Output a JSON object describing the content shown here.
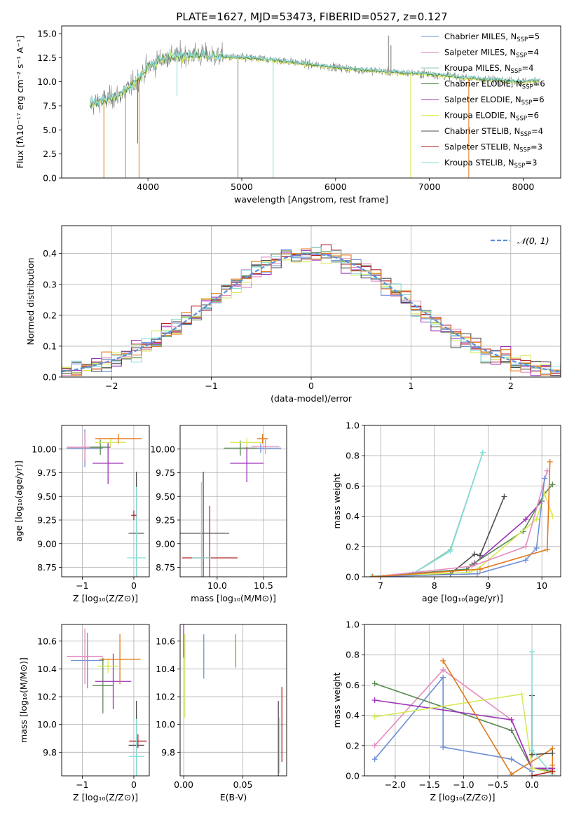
{
  "figure": {
    "title": "PLATE=1627, MJD=53473, FIBERID=0527, z=0.127"
  },
  "colors": {
    "chabrier_miles": "#6f8fd6",
    "salpeter_miles": "#e58cc0",
    "kroupa_miles": "#86c9a6",
    "chabrier_elodie": "#5a8a52",
    "salpeter_elodie": "#9b33b8",
    "kroupa_elodie": "#d7ea57",
    "chabrier_stelib": "#4d4d4d",
    "salpeter_stelib": "#b82424",
    "kroupa_stelib": "#86dcd9",
    "orange_extra": "#e07a1c",
    "normal_fit": "#5b8fd6"
  },
  "chart_data": [
    {
      "id": "spectrum",
      "type": "line",
      "title": "PLATE=1627, MJD=53473, FIBERID=0527, z=0.127",
      "xlabel": "wavelength [Angstrom, rest frame]",
      "ylabel": "Flux [f$_\\lambda$10$^{-17}$ erg cm$^{-2}$ s$^{-1}$ A$^{-1}$]",
      "ylabel_display": "Flux [fλ10⁻¹⁷ erg cm⁻² s⁻¹ A⁻¹]",
      "xlim": [
        3080,
        8400
      ],
      "ylim": [
        0,
        15.8
      ],
      "xticks": [
        4000,
        5000,
        6000,
        7000,
        8000
      ],
      "yticks": [
        0.0,
        2.5,
        5.0,
        7.5,
        10.0,
        12.5,
        15.0
      ],
      "ytick_labels": [
        "0.0",
        "2.5",
        "5.0",
        "7.5",
        "10.0",
        "12.5",
        "15.0"
      ],
      "legend_position": "right",
      "legend": [
        {
          "label": "Chabrier MILES, N",
          "sub": "SSP",
          "tail": "=5",
          "color_key": "chabrier_miles"
        },
        {
          "label": "Salpeter MILES, N",
          "sub": "SSP",
          "tail": "=4",
          "color_key": "salpeter_miles"
        },
        {
          "label": "Kroupa MILES, N",
          "sub": "SSP",
          "tail": "=4",
          "color_key": "kroupa_miles"
        },
        {
          "label": "Chabrier ELODIE, N",
          "sub": "SSP",
          "tail": "=6",
          "color_key": "chabrier_elodie"
        },
        {
          "label": "Salpeter ELODIE, N",
          "sub": "SSP",
          "tail": "=6",
          "color_key": "salpeter_elodie"
        },
        {
          "label": "Kroupa ELODIE, N",
          "sub": "SSP",
          "tail": "=6",
          "color_key": "kroupa_elodie"
        },
        {
          "label": "Chabrier STELIB, N",
          "sub": "SSP",
          "tail": "=4",
          "color_key": "chabrier_stelib"
        },
        {
          "label": "Salpeter STELIB, N",
          "sub": "SSP",
          "tail": "=3",
          "color_key": "salpeter_stelib"
        },
        {
          "label": "Kroupa STELIB, N",
          "sub": "SSP",
          "tail": "=3",
          "color_key": "kroupa_stelib"
        }
      ],
      "continuum": [
        [
          3380,
          7.6
        ],
        [
          3500,
          8.0
        ],
        [
          3700,
          8.6
        ],
        [
          3850,
          9.8
        ],
        [
          4000,
          11.5
        ],
        [
          4200,
          12.6
        ],
        [
          4500,
          12.8
        ],
        [
          4800,
          12.6
        ],
        [
          5200,
          12.4
        ],
        [
          5500,
          12.1
        ],
        [
          5800,
          11.7
        ],
        [
          6200,
          11.3
        ],
        [
          6600,
          11.0
        ],
        [
          7000,
          10.8
        ],
        [
          7500,
          10.3
        ],
        [
          8000,
          10.0
        ],
        [
          8180,
          10.2
        ]
      ],
      "spikes_down": [
        [
          3530,
          0
        ],
        [
          3760,
          0
        ],
        [
          3890,
          3.6
        ],
        [
          3905,
          0
        ],
        [
          4310,
          8.5
        ],
        [
          4960,
          0
        ],
        [
          5335,
          0
        ],
        [
          6800,
          0
        ],
        [
          7420,
          0
        ]
      ],
      "spikes_up": [
        [
          6565,
          14.8
        ],
        [
          6590,
          13.8
        ]
      ]
    },
    {
      "id": "residuals",
      "type": "area",
      "xlabel": "(data-model)/error",
      "ylabel": "Normed distribution",
      "xlim": [
        -2.5,
        2.5
      ],
      "ylim": [
        0,
        0.49
      ],
      "xticks": [
        -2,
        -1,
        0,
        1,
        2
      ],
      "xtick_labels": [
        "−2",
        "−1",
        "0",
        "1",
        "2"
      ],
      "yticks": [
        0.0,
        0.1,
        0.2,
        0.3,
        0.4
      ],
      "ytick_labels": [
        "0.0",
        "0.1",
        "0.2",
        "0.3",
        "0.4"
      ],
      "grid": true,
      "legend_label": "𝒩(0, 1)",
      "legend_position": "top-right",
      "bin_width": 0.1
    },
    {
      "id": "age_vs_z",
      "type": "scatter",
      "xlabel": "Z [log₁₀(Z/Z⊙)]",
      "ylabel": "age  [log₁₀(age/yr)]",
      "xlim": [
        -1.4,
        0.3
      ],
      "ylim": [
        8.65,
        10.25
      ],
      "xticks": [
        -1,
        0
      ],
      "xtick_labels": [
        "−1",
        "0"
      ],
      "yticks": [
        8.75,
        9.0,
        9.25,
        9.5,
        9.75,
        10.0
      ],
      "ytick_labels": [
        "8.75",
        "9.00",
        "9.25",
        "9.50",
        "9.75",
        "10.00"
      ],
      "grid": true,
      "points": [
        {
          "color_key": "chabrier_miles",
          "x": -0.95,
          "xerr": 0.35,
          "y": 10.01,
          "yerr": 0.2
        },
        {
          "color_key": "salpeter_miles",
          "x": -0.95,
          "xerr": 0.35,
          "y": 10.02,
          "yerr": 0.15
        },
        {
          "color_key": "chabrier_elodie",
          "x": -0.65,
          "xerr": 0.2,
          "y": 10.02,
          "yerr": 0.08
        },
        {
          "color_key": "salpeter_elodie",
          "x": -0.5,
          "xerr": 0.3,
          "y": 9.85,
          "yerr": 0.22
        },
        {
          "color_key": "kroupa_elodie",
          "x": -0.45,
          "xerr": 0.3,
          "y": 10.07,
          "yerr": 0.05
        },
        {
          "color_key": "orange_extra",
          "x": -0.3,
          "xerr": 0.45,
          "y": 10.11,
          "yerr": 0.05
        },
        {
          "color_key": "chabrier_stelib",
          "x": 0.05,
          "xerr": 0.15,
          "y": 9.11,
          "yerr": 0.65
        },
        {
          "color_key": "kroupa_stelib",
          "x": 0.05,
          "xerr": 0.18,
          "y": 8.85,
          "yerr": 0.75
        },
        {
          "color_key": "salpeter_stelib",
          "x": 0.0,
          "xerr": 0.05,
          "y": 9.3,
          "yerr": 0.05
        }
      ]
    },
    {
      "id": "age_vs_mass",
      "type": "scatter",
      "xlabel": "mass [log₁₀(M/M⊙)]",
      "ylabel": "",
      "xlim": [
        9.6,
        10.75
      ],
      "ylim": [
        8.65,
        10.25
      ],
      "xticks": [
        10.0,
        10.5
      ],
      "xtick_labels": [
        "10.0",
        "10.5"
      ],
      "yticks": [
        8.75,
        9.0,
        9.25,
        9.5,
        9.75,
        10.0
      ],
      "ytick_labels": [
        "8.75",
        "9.00",
        "9.25",
        "9.50",
        "9.75",
        "10.00"
      ],
      "grid": true,
      "points": [
        {
          "color_key": "chabrier_miles",
          "x": 10.47,
          "xerr": 0.22,
          "y": 10.01,
          "yerr": 0.05
        },
        {
          "color_key": "salpeter_miles",
          "x": 10.52,
          "xerr": 0.15,
          "y": 10.03,
          "yerr": 0.08
        },
        {
          "color_key": "chabrier_elodie",
          "x": 10.25,
          "xerr": 0.18,
          "y": 10.01,
          "yerr": 0.08
        },
        {
          "color_key": "salpeter_elodie",
          "x": 10.32,
          "xerr": 0.18,
          "y": 9.85,
          "yerr": 0.2
        },
        {
          "color_key": "kroupa_elodie",
          "x": 10.32,
          "xerr": 0.18,
          "y": 10.07,
          "yerr": 0.05
        },
        {
          "color_key": "orange_extra",
          "x": 10.49,
          "xerr": 0.06,
          "y": 10.11,
          "yerr": 0.05
        },
        {
          "color_key": "chabrier_stelib",
          "x": 9.85,
          "xerr": 0.28,
          "y": 9.11,
          "yerr": 0.65
        },
        {
          "color_key": "salpeter_stelib",
          "x": 9.92,
          "xerr": 0.3,
          "y": 8.85,
          "yerr": 0.55
        },
        {
          "color_key": "kroupa_stelib",
          "x": 9.83,
          "xerr": 0.1,
          "y": 8.85,
          "yerr": 0.8
        }
      ]
    },
    {
      "id": "mass_weight_vs_age",
      "type": "line",
      "xlabel": "age  [log₁₀(age/yr)]",
      "ylabel": "mass weight",
      "xlim": [
        6.7,
        10.35
      ],
      "ylim": [
        0,
        1.0
      ],
      "xticks": [
        7,
        8,
        9,
        10
      ],
      "xtick_labels": [
        "7",
        "8",
        "9",
        "10"
      ],
      "yticks": [
        0.0,
        0.2,
        0.4,
        0.6,
        0.8,
        1.0
      ],
      "ytick_labels": [
        "0.0",
        "0.2",
        "0.4",
        "0.6",
        "0.8",
        "1.0"
      ],
      "grid": true,
      "series": [
        {
          "color_key": "kroupa_miles",
          "x": [
            6.85,
            7.6,
            8.3,
            8.9
          ],
          "values": [
            0.005,
            0.02,
            0.18,
            0.82
          ]
        },
        {
          "color_key": "kroupa_stelib",
          "x": [
            6.85,
            7.6,
            8.3,
            8.9
          ],
          "values": [
            0.005,
            0.02,
            0.17,
            0.82
          ]
        },
        {
          "color_key": "chabrier_stelib",
          "x": [
            6.85,
            8.3,
            8.75,
            8.85,
            9.3
          ],
          "values": [
            0.0,
            0.02,
            0.15,
            0.14,
            0.53
          ]
        },
        {
          "color_key": "salpeter_elodie",
          "x": [
            6.85,
            8.6,
            8.75,
            9.7,
            10.0
          ],
          "values": [
            0.0,
            0.05,
            0.09,
            0.38,
            0.5
          ]
        },
        {
          "color_key": "chabrier_elodie",
          "x": [
            6.85,
            8.6,
            8.7,
            9.65,
            10.05,
            10.2
          ],
          "values": [
            0.0,
            0.05,
            0.08,
            0.3,
            0.55,
            0.61
          ]
        },
        {
          "color_key": "kroupa_elodie",
          "x": [
            6.85,
            8.65,
            8.8,
            9.9,
            10.05,
            10.2
          ],
          "values": [
            0.0,
            0.03,
            0.05,
            0.38,
            0.55,
            0.4
          ]
        },
        {
          "color_key": "salpeter_miles",
          "x": [
            6.85,
            8.7,
            9.7,
            10.1
          ],
          "values": [
            0.0,
            0.07,
            0.2,
            0.7
          ]
        },
        {
          "color_key": "chabrier_miles",
          "x": [
            6.85,
            8.8,
            9.7,
            9.9,
            10.05
          ],
          "values": [
            0.0,
            0.02,
            0.11,
            0.19,
            0.65
          ]
        },
        {
          "color_key": "orange_extra",
          "x": [
            6.85,
            8.85,
            10.1,
            10.15
          ],
          "values": [
            0.0,
            0.05,
            0.18,
            0.76
          ]
        }
      ]
    },
    {
      "id": "mass_vs_z",
      "type": "scatter",
      "xlabel": "Z [log₁₀(Z/Z⊙)]",
      "ylabel": "mass [log₁₀(M/M⊙)]",
      "xlim": [
        -1.4,
        0.3
      ],
      "ylim": [
        9.63,
        10.72
      ],
      "xticks": [
        -1,
        0
      ],
      "xtick_labels": [
        "−1",
        "0"
      ],
      "yticks": [
        9.8,
        10.0,
        10.2,
        10.4,
        10.6
      ],
      "ytick_labels": [
        "9.8",
        "10.0",
        "10.2",
        "10.4",
        "10.6"
      ],
      "grid": true,
      "points": [
        {
          "color_key": "chabrier_miles",
          "x": -0.9,
          "xerr": 0.32,
          "y": 10.46,
          "yerr": 0.2
        },
        {
          "color_key": "salpeter_miles",
          "x": -0.95,
          "xerr": 0.35,
          "y": 10.49,
          "yerr": 0.2
        },
        {
          "color_key": "chabrier_elodie",
          "x": -0.6,
          "xerr": 0.2,
          "y": 10.28,
          "yerr": 0.2
        },
        {
          "color_key": "salpeter_elodie",
          "x": -0.4,
          "xerr": 0.35,
          "y": 10.31,
          "yerr": 0.2
        },
        {
          "color_key": "kroupa_elodie",
          "x": -0.5,
          "xerr": 0.2,
          "y": 10.42,
          "yerr": 0.05
        },
        {
          "color_key": "orange_extra",
          "x": -0.27,
          "xerr": 0.4,
          "y": 10.47,
          "yerr": 0.18
        },
        {
          "color_key": "chabrier_stelib",
          "x": 0.05,
          "xerr": 0.15,
          "y": 9.85,
          "yerr": 0.32
        },
        {
          "color_key": "salpeter_stelib",
          "x": 0.08,
          "xerr": 0.17,
          "y": 9.88,
          "yerr": 0.05
        },
        {
          "color_key": "kroupa_stelib",
          "x": 0.05,
          "xerr": 0.15,
          "y": 9.77,
          "yerr": 0.27
        }
      ]
    },
    {
      "id": "mass_vs_ebv",
      "type": "scatter",
      "xlabel": "E(B-V)",
      "ylabel": "",
      "xlim": [
        -0.003,
        0.087
      ],
      "ylim": [
        9.63,
        10.72
      ],
      "xticks": [
        0.0,
        0.05
      ],
      "xtick_labels": [
        "0.00",
        "0.05"
      ],
      "yticks": [
        9.8,
        10.0,
        10.2,
        10.4,
        10.6
      ],
      "ytick_labels": [
        "9.8",
        "10.0",
        "10.2",
        "10.4",
        "10.6"
      ],
      "grid": true,
      "points": [
        {
          "color_key": "salpeter_elodie",
          "x": 0.0,
          "xerr": 0.0,
          "y": 10.6,
          "yerr": 0.12
        },
        {
          "color_key": "kroupa_elodie",
          "x": 0.001,
          "xerr": 0.0,
          "y": 10.35,
          "yerr": 0.3
        },
        {
          "color_key": "chabrier_miles",
          "x": 0.017,
          "xerr": 0.0,
          "y": 10.49,
          "yerr": 0.16
        },
        {
          "color_key": "orange_extra",
          "x": 0.044,
          "xerr": 0.0,
          "y": 10.53,
          "yerr": 0.12
        },
        {
          "color_key": "chabrier_stelib",
          "x": 0.08,
          "xerr": 0.0,
          "y": 9.85,
          "yerr": 0.32
        },
        {
          "color_key": "salpeter_stelib",
          "x": 0.083,
          "xerr": 0.0,
          "y": 10.0,
          "yerr": 0.27
        },
        {
          "color_key": "kroupa_stelib",
          "x": 0.081,
          "xerr": 0.0,
          "y": 9.85,
          "yerr": 0.2
        }
      ]
    },
    {
      "id": "mass_weight_vs_z",
      "type": "line",
      "xlabel": "Z [log₁₀(Z/Z⊙)]",
      "ylabel": "mass weight",
      "xlim": [
        -2.45,
        0.42
      ],
      "ylim": [
        0,
        1.0
      ],
      "xticks": [
        -2.0,
        -1.5,
        -1.0,
        -0.5,
        0.0
      ],
      "xtick_labels": [
        "−2.0",
        "−1.5",
        "−1.0",
        "−0.5",
        "0.0"
      ],
      "yticks": [
        0.0,
        0.2,
        0.4,
        0.6,
        0.8,
        1.0
      ],
      "ytick_labels": [
        "0.0",
        "0.2",
        "0.4",
        "0.6",
        "0.8",
        "1.0"
      ],
      "grid": true,
      "series": [
        {
          "color_key": "chabrier_miles",
          "x": [
            -2.3,
            -1.3,
            -1.3,
            -0.3,
            0.0
          ],
          "values": [
            0.11,
            0.65,
            0.19,
            0.11,
            0.03
          ]
        },
        {
          "color_key": "salpeter_miles",
          "x": [
            -2.3,
            -1.3,
            -0.3,
            0.0,
            0.3
          ],
          "values": [
            0.2,
            0.7,
            0.37,
            0.05,
            0.04
          ]
        },
        {
          "color_key": "chabrier_elodie",
          "x": [
            -2.3,
            -0.3,
            0.0,
            0.3
          ],
          "values": [
            0.61,
            0.3,
            0.05,
            0.03
          ]
        },
        {
          "color_key": "salpeter_elodie",
          "x": [
            -2.3,
            -0.3,
            0.0,
            0.3
          ],
          "values": [
            0.5,
            0.37,
            0.05,
            0.05
          ]
        },
        {
          "color_key": "kroupa_elodie",
          "x": [
            -2.3,
            -0.15,
            0.0,
            0.3
          ],
          "values": [
            0.39,
            0.54,
            0.05,
            0.02
          ]
        },
        {
          "color_key": "orange_extra",
          "x": [
            -1.3,
            -0.3,
            0.3,
            0.3
          ],
          "values": [
            0.76,
            0.01,
            0.18,
            0.07
          ]
        },
        {
          "color_key": "chabrier_stelib",
          "x": [
            0.0,
            0.0,
            0.3
          ],
          "values": [
            0.53,
            0.14,
            0.15
          ]
        },
        {
          "color_key": "kroupa_stelib",
          "x": [
            0.0,
            0.0,
            0.3
          ],
          "values": [
            0.82,
            0.17,
            0.01
          ]
        },
        {
          "color_key": "salpeter_stelib",
          "x": [
            0.0,
            0.3
          ],
          "values": [
            0.0,
            0.03
          ]
        }
      ]
    }
  ]
}
